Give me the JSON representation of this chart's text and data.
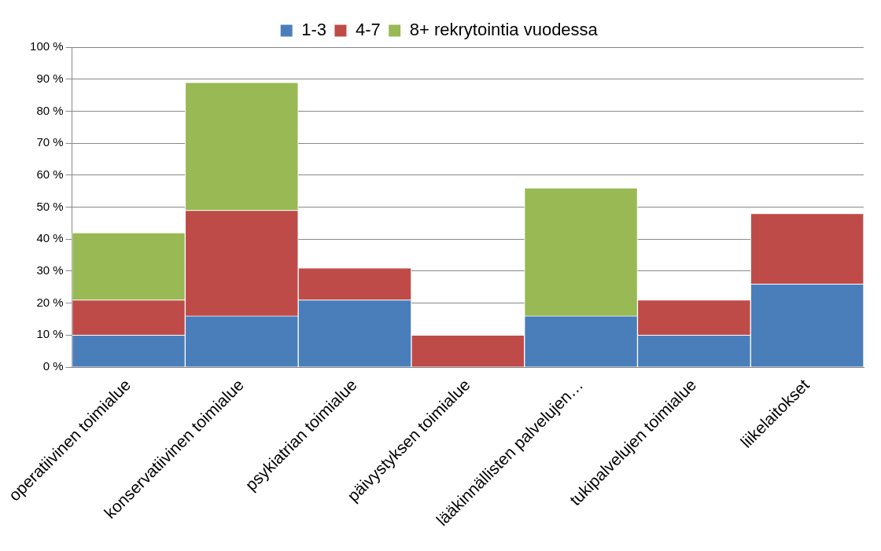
{
  "chart_data": {
    "type": "bar",
    "stacked": true,
    "categories": [
      "operatiivinen toimialue",
      "konservatiivinen toimialue",
      "psykiatrian toimialue",
      "päivystyksen toimialue",
      "lääkinnällisten palvelujen…",
      "tukipalvelujen toimialue",
      "liikelaitokset"
    ],
    "series": [
      {
        "name": "1-3",
        "color": "#4a7ebb",
        "values": [
          10,
          16,
          21,
          0,
          16,
          10,
          26
        ]
      },
      {
        "name": "4-7",
        "color": "#be4b48",
        "values": [
          11,
          33,
          10,
          10,
          0,
          11,
          22
        ]
      },
      {
        "name": "8+ rekrytointia vuodessa",
        "color": "#98b954",
        "values": [
          21,
          40,
          0,
          0,
          40,
          0,
          0
        ]
      }
    ],
    "ylim": [
      0,
      100
    ],
    "yticks": [
      {
        "value": 0,
        "label": "0 %"
      },
      {
        "value": 10,
        "label": "10 %"
      },
      {
        "value": 20,
        "label": "20 %"
      },
      {
        "value": 30,
        "label": "30 %"
      },
      {
        "value": 40,
        "label": "40 %"
      },
      {
        "value": 50,
        "label": "50 %"
      },
      {
        "value": 60,
        "label": "60 %"
      },
      {
        "value": 70,
        "label": "70 %"
      },
      {
        "value": 80,
        "label": "80 %"
      },
      {
        "value": 90,
        "label": "90 %"
      },
      {
        "value": 100,
        "label": "100 %"
      }
    ],
    "grid": "y",
    "legend": "top"
  }
}
